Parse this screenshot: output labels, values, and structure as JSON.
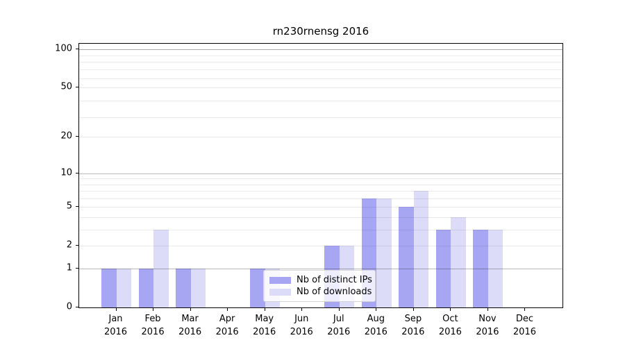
{
  "title": "rn230rnensg 2016",
  "colors": {
    "distinct_ips": "#a6a6f2",
    "downloads": "#dcdcf8",
    "grid_minor": "rgba(0,0,0,0.08)",
    "grid_major": "rgba(0,0,0,0.27)",
    "axis": "#000000"
  },
  "legend": {
    "items": [
      {
        "label": "Nb of distinct IPs",
        "color_key": "distinct_ips"
      },
      {
        "label": "Nb of downloads",
        "color_key": "downloads"
      }
    ]
  },
  "chart_data": {
    "type": "bar",
    "title": "rn230rnensg 2016",
    "categories": [
      "Jan",
      "Feb",
      "Mar",
      "Apr",
      "May",
      "Jun",
      "Jul",
      "Aug",
      "Sep",
      "Oct",
      "Nov",
      "Dec"
    ],
    "category_year": "2016",
    "series": [
      {
        "name": "Nb of distinct IPs",
        "color": "#a6a6f2",
        "values": [
          1,
          1,
          1,
          0,
          1,
          0,
          2,
          6,
          5,
          3,
          3,
          0
        ]
      },
      {
        "name": "Nb of downloads",
        "color": "#dcdcf8",
        "values": [
          1,
          3,
          1,
          0,
          1,
          0,
          2,
          6,
          7,
          4,
          3,
          0
        ]
      }
    ],
    "xlabel": "",
    "ylabel": "",
    "yscale": "log1p",
    "yticks": [
      0,
      1,
      2,
      5,
      10,
      20,
      50,
      100
    ],
    "ylim": [
      0,
      110
    ],
    "grid": true,
    "legend_position": "lower-center-inside"
  }
}
